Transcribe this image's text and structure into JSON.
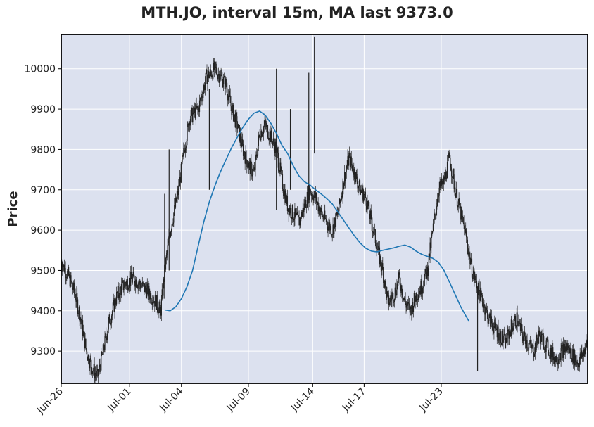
{
  "chart_data": {
    "type": "candlestick",
    "title": "MTH.JO, interval 15m, MA last 9373.0",
    "ylabel": "Price",
    "xlabel": "",
    "ylim": [
      9220,
      10085
    ],
    "yticks": [
      9300,
      9400,
      9500,
      9600,
      9700,
      9800,
      9900,
      10000
    ],
    "x_ticks": [
      "Jun-26",
      "Jul-01",
      "Jul-04",
      "Jul-09",
      "Jul-14",
      "Jul-17",
      "Jul-23"
    ],
    "grid": true,
    "colors": {
      "plot_bg": "#dce1ef",
      "grid": "#ffffff",
      "candle": "#222222",
      "ma_line": "#1f77b4"
    },
    "price_path": [
      [
        0,
        9520
      ],
      [
        1.2,
        9490
      ],
      [
        2.5,
        9440
      ],
      [
        3.5,
        9380
      ],
      [
        4.5,
        9300
      ],
      [
        5.5,
        9260
      ],
      [
        6.5,
        9235
      ],
      [
        7.5,
        9300
      ],
      [
        8.5,
        9370
      ],
      [
        10,
        9440
      ],
      [
        11.5,
        9470
      ],
      [
        13,
        9480
      ],
      [
        14.5,
        9460
      ],
      [
        16,
        9440
      ],
      [
        17,
        9420
      ],
      [
        17.8,
        9400
      ],
      [
        18.5,
        9500
      ],
      [
        19.5,
        9600
      ],
      [
        21,
        9700
      ],
      [
        22,
        9800
      ],
      [
        23,
        9880
      ],
      [
        24.5,
        9900
      ],
      [
        26,
        9980
      ],
      [
        27.5,
        10000
      ],
      [
        28.5,
        9980
      ],
      [
        29.5,
        9960
      ],
      [
        30.5,
        9900
      ],
      [
        31.5,
        9860
      ],
      [
        32.5,
        9800
      ],
      [
        33.5,
        9760
      ],
      [
        34.5,
        9740
      ],
      [
        35.5,
        9840
      ],
      [
        36.5,
        9860
      ],
      [
        37.5,
        9830
      ],
      [
        38.5,
        9800
      ],
      [
        39.5,
        9720
      ],
      [
        40.5,
        9660
      ],
      [
        41.5,
        9640
      ],
      [
        42.5,
        9620
      ],
      [
        43.5,
        9660
      ],
      [
        44.5,
        9700
      ],
      [
        45.5,
        9680
      ],
      [
        46.5,
        9640
      ],
      [
        47.5,
        9620
      ],
      [
        48.5,
        9600
      ],
      [
        49.5,
        9640
      ],
      [
        50.5,
        9720
      ],
      [
        51.5,
        9780
      ],
      [
        52.5,
        9740
      ],
      [
        53.5,
        9700
      ],
      [
        54.5,
        9680
      ],
      [
        55.5,
        9620
      ],
      [
        56.5,
        9560
      ],
      [
        57.5,
        9500
      ],
      [
        58.5,
        9420
      ],
      [
        59.5,
        9440
      ],
      [
        60.5,
        9480
      ],
      [
        61.5,
        9420
      ],
      [
        62.5,
        9400
      ],
      [
        63.5,
        9440
      ],
      [
        64.5,
        9460
      ],
      [
        65.5,
        9500
      ],
      [
        66.5,
        9600
      ],
      [
        67.5,
        9700
      ],
      [
        68.5,
        9720
      ],
      [
        69.5,
        9780
      ],
      [
        70.5,
        9700
      ],
      [
        71.5,
        9640
      ],
      [
        72.5,
        9580
      ],
      [
        73.5,
        9500
      ],
      [
        74.5,
        9460
      ],
      [
        75.5,
        9420
      ],
      [
        76.5,
        9380
      ],
      [
        77.5,
        9360
      ],
      [
        78.5,
        9340
      ],
      [
        79.5,
        9320
      ],
      [
        80.5,
        9360
      ],
      [
        81.5,
        9380
      ],
      [
        82.5,
        9340
      ],
      [
        83.5,
        9320
      ],
      [
        84.5,
        9300
      ],
      [
        85.5,
        9340
      ],
      [
        86.5,
        9320
      ],
      [
        87.5,
        9300
      ],
      [
        88.5,
        9280
      ],
      [
        89.5,
        9300
      ],
      [
        90.5,
        9310
      ],
      [
        91.5,
        9290
      ],
      [
        92.5,
        9270
      ],
      [
        93.5,
        9300
      ],
      [
        94.2,
        9320
      ]
    ],
    "wicks": [
      [
        18.5,
        9430,
        9690
      ],
      [
        19.3,
        9500,
        9800
      ],
      [
        26.5,
        9700,
        9950
      ],
      [
        38.5,
        9650,
        10000
      ],
      [
        41,
        9700,
        9900
      ],
      [
        44.3,
        9700,
        9990
      ],
      [
        45.3,
        9790,
        10080
      ],
      [
        74.5,
        9250,
        9460
      ]
    ],
    "ma_path": [
      [
        18.5,
        9402
      ],
      [
        19.5,
        9400
      ],
      [
        20.5,
        9410
      ],
      [
        21.5,
        9430
      ],
      [
        22.5,
        9460
      ],
      [
        23.5,
        9500
      ],
      [
        24.5,
        9560
      ],
      [
        25.5,
        9620
      ],
      [
        26.5,
        9670
      ],
      [
        27.5,
        9710
      ],
      [
        28.5,
        9745
      ],
      [
        29.5,
        9775
      ],
      [
        30.5,
        9805
      ],
      [
        31.5,
        9830
      ],
      [
        32.5,
        9855
      ],
      [
        33.5,
        9875
      ],
      [
        34.5,
        9890
      ],
      [
        35.5,
        9895
      ],
      [
        36.5,
        9885
      ],
      [
        37.5,
        9865
      ],
      [
        38.5,
        9840
      ],
      [
        39.5,
        9810
      ],
      [
        40.5,
        9790
      ],
      [
        41.5,
        9760
      ],
      [
        42.5,
        9735
      ],
      [
        43.5,
        9720
      ],
      [
        44.5,
        9712
      ],
      [
        45.5,
        9700
      ],
      [
        46.5,
        9690
      ],
      [
        47.5,
        9678
      ],
      [
        48.5,
        9665
      ],
      [
        49.5,
        9645
      ],
      [
        50.5,
        9625
      ],
      [
        51.5,
        9605
      ],
      [
        52.5,
        9585
      ],
      [
        53.5,
        9568
      ],
      [
        54.5,
        9555
      ],
      [
        55.5,
        9548
      ],
      [
        56.5,
        9546
      ],
      [
        57.5,
        9550
      ],
      [
        58.5,
        9553
      ],
      [
        59.5,
        9556
      ],
      [
        60.5,
        9560
      ],
      [
        61.5,
        9563
      ],
      [
        62.5,
        9558
      ],
      [
        63.5,
        9548
      ],
      [
        64.5,
        9540
      ],
      [
        65.5,
        9535
      ],
      [
        66.5,
        9530
      ],
      [
        67.5,
        9520
      ],
      [
        68.5,
        9500
      ],
      [
        69.5,
        9470
      ],
      [
        70.5,
        9440
      ],
      [
        71.5,
        9410
      ],
      [
        72.5,
        9385
      ],
      [
        73,
        9373
      ]
    ],
    "x_range": [
      0,
      94.2
    ]
  }
}
